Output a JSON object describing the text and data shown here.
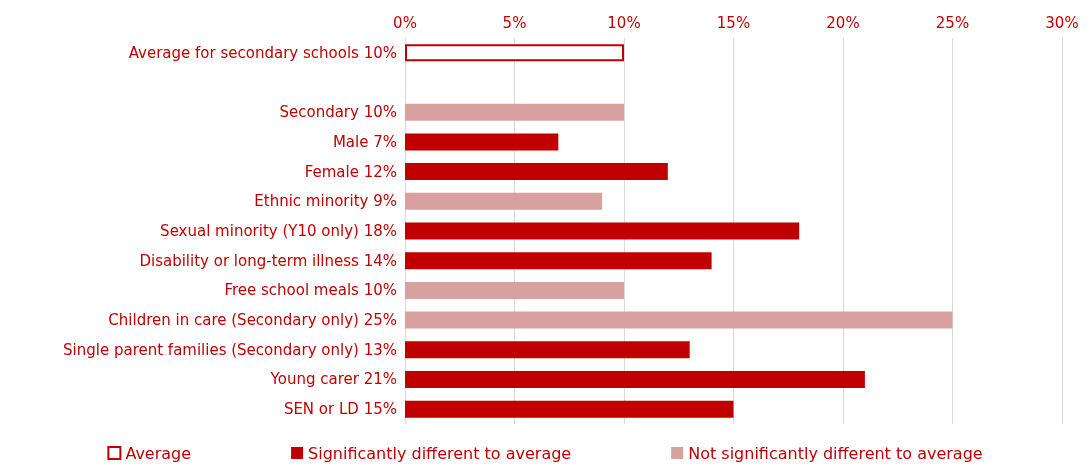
{
  "chart_data": {
    "type": "bar",
    "orientation": "horizontal",
    "categories": [
      "Average for secondary schools 10%",
      null,
      "Secondary 10%",
      "Male 7%",
      "Female 12%",
      "Ethnic minority 9%",
      "Sexual minority (Y10 only) 18%",
      "Disability or long-term illness 14%",
      "Free school meals 10%",
      "Children in care (Secondary only) 25%",
      "Single parent families (Secondary only) 13%",
      "Young carer 21%",
      "SEN or LD 15%"
    ],
    "series": [
      {
        "name": "Average",
        "color": "#c00000",
        "values": [
          10,
          null,
          null,
          null,
          null,
          null,
          null,
          null,
          null,
          null,
          null,
          null,
          null
        ]
      },
      {
        "name": "Significantly different to average",
        "color": "#c00000",
        "values": [
          null,
          null,
          null,
          7,
          12,
          null,
          18,
          14,
          null,
          null,
          13,
          21,
          15
        ]
      },
      {
        "name": "Not significantly different to average",
        "color": "#d9a0a0",
        "values": [
          null,
          null,
          10,
          null,
          null,
          9,
          null,
          null,
          10,
          25,
          null,
          null,
          null
        ]
      }
    ],
    "xlim": [
      0,
      30
    ],
    "xticks": [
      {
        "value": 0,
        "label": "0%"
      },
      {
        "value": 5,
        "label": "5%"
      },
      {
        "value": 10,
        "label": "10%"
      },
      {
        "value": 15,
        "label": "15%"
      },
      {
        "value": 20,
        "label": "20%"
      },
      {
        "value": 25,
        "label": "25%"
      },
      {
        "value": 30,
        "label": "30%"
      }
    ],
    "grid": "x",
    "legend": "bottom"
  }
}
